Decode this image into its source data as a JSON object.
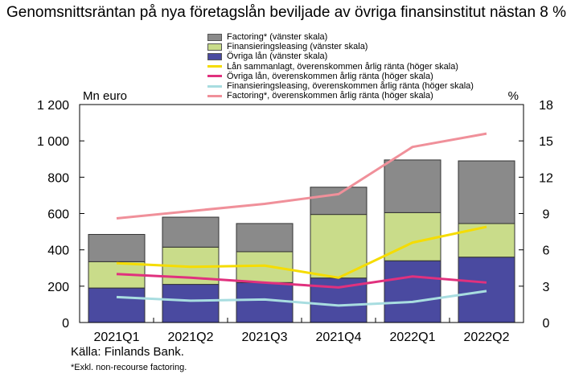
{
  "title": "Genomsnittsräntan på nya företagslån beviljade av övriga finansinstitut nästan 8 %",
  "source": "Källa: Finlands Bank.",
  "footnote": "*Exkl. non-recourse factoring.",
  "chart_data": {
    "type": "bar",
    "stacked": true,
    "categories": [
      "2021Q1",
      "2021Q2",
      "2021Q3",
      "2021Q4",
      "2022Q1",
      "2022Q2"
    ],
    "left_axis": {
      "label": "Mn euro",
      "range": [
        0,
        1200
      ],
      "ticks": [
        "0",
        "200",
        "400",
        "600",
        "800",
        "1 000",
        "1 200"
      ]
    },
    "right_axis": {
      "label": "%",
      "range": [
        0,
        18
      ],
      "ticks": [
        "0",
        "3",
        "6",
        "9",
        "12",
        "15",
        "18"
      ]
    },
    "grid": false,
    "legend_position": "top",
    "bar_series": [
      {
        "name": "Övriga lån (vänster skala)",
        "color": "#4a4aa0",
        "values": [
          190,
          210,
          220,
          245,
          340,
          360
        ]
      },
      {
        "name": "Finansieringsleasing (vänster skala)",
        "color": "#c9dc8a",
        "values": [
          145,
          205,
          170,
          350,
          265,
          185
        ]
      },
      {
        "name": "Factoring* (vänster skala)",
        "color": "#8a8a8a",
        "values": [
          150,
          165,
          155,
          150,
          290,
          345
        ]
      }
    ],
    "line_series": [
      {
        "name": "Lån sammanlagt, överenskommen årlig ränta (höger skala)",
        "color": "#f5dc00",
        "values": [
          4.9,
          4.6,
          4.7,
          3.7,
          6.6,
          7.9
        ]
      },
      {
        "name": "Övriga lån, överenskommen årlig ränta (höger skala)",
        "color": "#e0317e",
        "values": [
          4.0,
          3.7,
          3.3,
          2.9,
          3.8,
          3.3
        ]
      },
      {
        "name": "Finansieringsleasing, överenskommen årlig ränta (höger skala)",
        "color": "#a8dde0",
        "values": [
          2.1,
          1.8,
          1.9,
          1.4,
          1.7,
          2.6
        ]
      },
      {
        "name": "Factoring*, överenskommen årlig ränta (höger skala)",
        "color": "#f0909a",
        "values": [
          8.6,
          9.2,
          9.8,
          10.6,
          14.5,
          15.6
        ]
      }
    ],
    "legend_order": [
      "Factoring* (vänster skala)",
      "Finansieringsleasing (vänster skala)",
      "Övriga lån (vänster skala)",
      "Lån sammanlagt, överenskommen årlig ränta (höger skala)",
      "Övriga lån, överenskommen årlig ränta (höger skala)",
      "Finansieringsleasing, överenskommen årlig ränta (höger skala)",
      "Factoring*, överenskommen årlig ränta (höger skala)"
    ]
  }
}
